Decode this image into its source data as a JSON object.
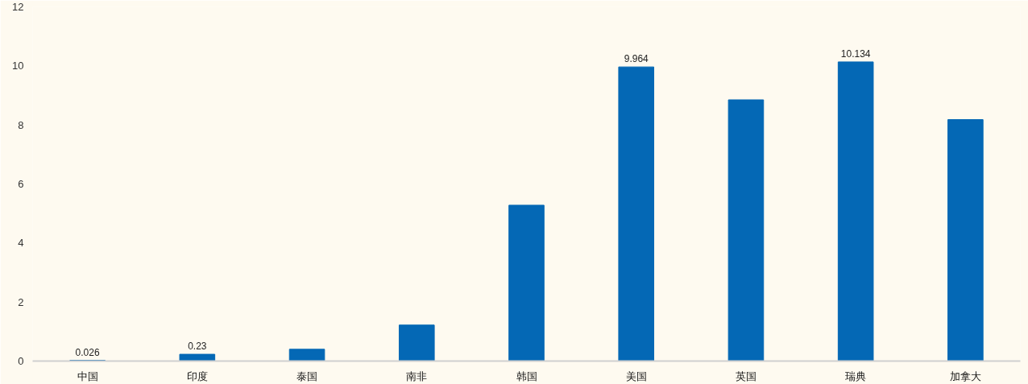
{
  "chart_data": {
    "type": "bar",
    "categories": [
      "中国",
      "印度",
      "泰国",
      "南非",
      "韩国",
      "美国",
      "英国",
      "瑞典",
      "加拿大"
    ],
    "values": [
      0.026,
      0.23,
      0.4,
      1.22,
      5.28,
      9.964,
      8.85,
      10.134,
      8.18
    ],
    "value_labels": [
      "0.026",
      "0.23",
      null,
      null,
      null,
      "9.964",
      null,
      "10.134",
      null
    ],
    "color": "#0468b5",
    "ylim": [
      0,
      12
    ],
    "yticks": [
      0,
      2,
      4,
      6,
      8,
      10,
      12
    ],
    "grid": false
  }
}
